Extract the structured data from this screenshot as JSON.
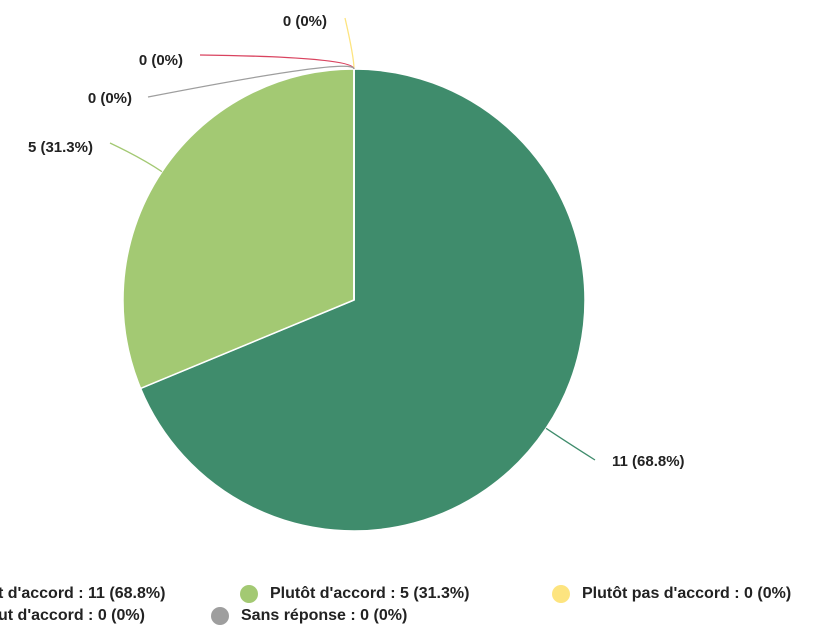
{
  "chart_data": {
    "type": "pie",
    "legend_labels": [
      "t d'accord : 11 (68.8%)",
      "Plutôt d'accord : 5 (31.3%)",
      "Plutôt pas d'accord : 0 (0%)",
      "ut d'accord : 0 (0%)",
      "Sans réponse : 0 (0%)"
    ],
    "values": [
      11,
      5,
      0,
      0,
      0
    ],
    "value_labels": [
      "11 (68.8%)",
      "5 (31.3%)",
      "0 (0%)",
      "0 (0%)",
      "0 (0%)"
    ],
    "colors": [
      "#3f8c6c",
      "#a3c973",
      "#fde47f",
      "#d9435f",
      "#9e9e9e"
    ]
  }
}
